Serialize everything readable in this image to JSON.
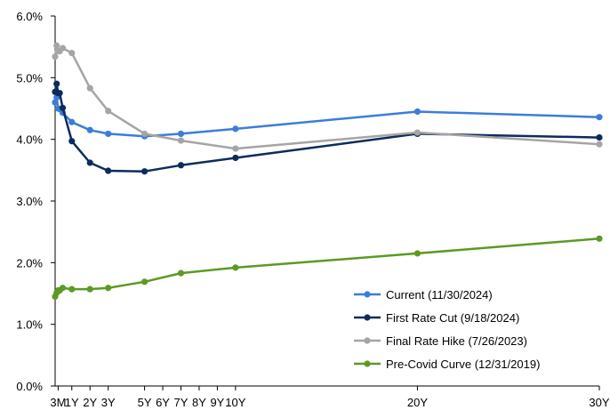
{
  "chart_data": {
    "type": "line",
    "title": "",
    "xlabel": "",
    "ylabel": "",
    "ylim": [
      0,
      6
    ],
    "y_ticks": [
      0,
      1,
      2,
      3,
      4,
      5,
      6
    ],
    "y_tick_labels": [
      "0.0%",
      "1.0%",
      "2.0%",
      "3.0%",
      "4.0%",
      "5.0%",
      "6.0%"
    ],
    "x_unit": "years to maturity",
    "xlim": [
      0.083,
      30
    ],
    "x_ticks": [
      0.25,
      1,
      2,
      3,
      5,
      6,
      7,
      8,
      9,
      10,
      20,
      30
    ],
    "x_tick_labels": [
      "3M",
      "1Y",
      "2Y",
      "3Y",
      "5Y",
      "6Y",
      "7Y",
      "8Y",
      "9Y",
      "10Y",
      "20Y",
      "30Y"
    ],
    "x": [
      0.083,
      0.167,
      0.25,
      0.333,
      0.5,
      1,
      2,
      3,
      5,
      7,
      10,
      20,
      30
    ],
    "grid": false,
    "legend_position": "bottom-right",
    "series": [
      {
        "name": "Current (11/30/2024)",
        "color": "#3C7DD9",
        "values": [
          4.6,
          4.68,
          4.5,
          4.49,
          4.43,
          4.28,
          4.15,
          4.09,
          4.05,
          4.09,
          4.17,
          4.45,
          4.36
        ]
      },
      {
        "name": "First Rate Cut (9/18/2024)",
        "color": "#0D2B5C",
        "values": [
          4.77,
          4.9,
          4.75,
          4.75,
          4.51,
          3.97,
          3.62,
          3.49,
          3.48,
          3.58,
          3.7,
          4.09,
          4.03
        ]
      },
      {
        "name": "Final Rate Hike (7/26/2023)",
        "color": "#A5A5A5",
        "values": [
          5.34,
          5.52,
          5.43,
          5.43,
          5.48,
          5.4,
          4.83,
          4.46,
          4.09,
          3.98,
          3.85,
          4.11,
          3.92
        ]
      },
      {
        "name": "Pre-Covid Curve (12/31/2019)",
        "color": "#5B9A23",
        "values": [
          1.45,
          1.51,
          1.55,
          1.55,
          1.59,
          1.57,
          1.57,
          1.59,
          1.69,
          1.83,
          1.92,
          2.15,
          2.39
        ]
      }
    ]
  }
}
